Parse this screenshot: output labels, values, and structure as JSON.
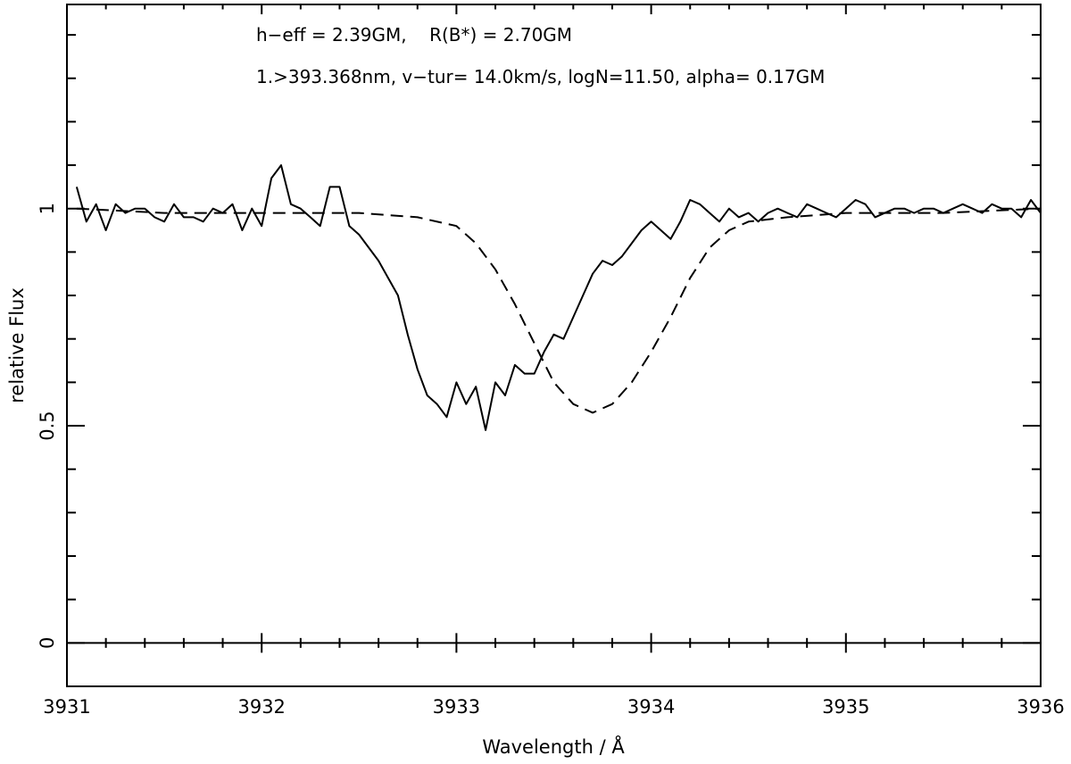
{
  "chart_data": {
    "type": "line",
    "title": "",
    "xlabel": "Wavelength / Å",
    "ylabel": "relative Flux",
    "xlim": [
      3931,
      3936
    ],
    "ylim": [
      -0.1,
      1.47
    ],
    "x_ticks": [
      3931,
      3932,
      3933,
      3934,
      3935,
      3936
    ],
    "x_tick_labels": [
      "3931",
      "3932",
      "3933",
      "3934",
      "3935",
      "3936"
    ],
    "y_ticks": [
      0,
      0.5,
      1
    ],
    "y_tick_labels": [
      "0",
      "0.5",
      "1"
    ],
    "zero_line": 0,
    "grid": false,
    "annotations": [
      "h−eff = 2.39GM,    R(B*) = 2.70GM",
      "1.>393.368nm, v−tur= 14.0km/s, logN=11.50, alpha= 0.17GM"
    ],
    "series": [
      {
        "style": "solid",
        "x": [
          3931.05,
          3931.1,
          3931.15,
          3931.2,
          3931.25,
          3931.3,
          3931.35,
          3931.4,
          3931.45,
          3931.5,
          3931.55,
          3931.6,
          3931.65,
          3931.7,
          3931.75,
          3931.8,
          3931.85,
          3931.9,
          3931.95,
          3932.0,
          3932.05,
          3932.1,
          3932.15,
          3932.2,
          3932.25,
          3932.3,
          3932.35,
          3932.4,
          3932.45,
          3932.5,
          3932.55,
          3932.6,
          3932.65,
          3932.7,
          3932.75,
          3932.8,
          3932.85,
          3932.9,
          3932.95,
          3933.0,
          3933.05,
          3933.1,
          3933.15,
          3933.2,
          3933.25,
          3933.3,
          3933.35,
          3933.4,
          3933.45,
          3933.5,
          3933.55,
          3933.6,
          3933.65,
          3933.7,
          3933.75,
          3933.8,
          3933.85,
          3933.9,
          3933.95,
          3934.0,
          3934.05,
          3934.1,
          3934.15,
          3934.2,
          3934.25,
          3934.3,
          3934.35,
          3934.4,
          3934.45,
          3934.5,
          3934.55,
          3934.6,
          3934.65,
          3934.7,
          3934.75,
          3934.8,
          3934.85,
          3934.9,
          3934.95,
          3935.0,
          3935.05,
          3935.1,
          3935.15,
          3935.2,
          3935.25,
          3935.3,
          3935.35,
          3935.4,
          3935.45,
          3935.5,
          3935.55,
          3935.6,
          3935.65,
          3935.7,
          3935.75,
          3935.8,
          3935.85,
          3935.9,
          3935.95,
          3936.0
        ],
        "values": [
          1.05,
          0.97,
          1.01,
          0.95,
          1.01,
          0.99,
          1.0,
          1.0,
          0.98,
          0.97,
          1.01,
          0.98,
          0.98,
          0.97,
          1.0,
          0.99,
          1.01,
          0.95,
          1.0,
          0.96,
          1.07,
          1.1,
          1.01,
          1.0,
          0.98,
          0.96,
          1.05,
          1.05,
          0.96,
          0.94,
          0.91,
          0.88,
          0.84,
          0.8,
          0.71,
          0.63,
          0.57,
          0.55,
          0.52,
          0.6,
          0.55,
          0.59,
          0.49,
          0.6,
          0.57,
          0.64,
          0.62,
          0.62,
          0.67,
          0.71,
          0.7,
          0.75,
          0.8,
          0.85,
          0.88,
          0.87,
          0.89,
          0.92,
          0.95,
          0.97,
          0.95,
          0.93,
          0.97,
          1.02,
          1.01,
          0.99,
          0.97,
          1.0,
          0.98,
          0.99,
          0.97,
          0.99,
          1.0,
          0.99,
          0.98,
          1.01,
          1.0,
          0.99,
          0.98,
          1.0,
          1.02,
          1.01,
          0.98,
          0.99,
          1.0,
          1.0,
          0.99,
          1.0,
          1.0,
          0.99,
          1.0,
          1.01,
          1.0,
          0.99,
          1.01,
          1.0,
          1.0,
          0.98,
          1.02,
          0.99
        ]
      },
      {
        "style": "dashed",
        "x": [
          3931.05,
          3931.5,
          3932.0,
          3932.5,
          3932.8,
          3933.0,
          3933.1,
          3933.2,
          3933.3,
          3933.4,
          3933.5,
          3933.6,
          3933.7,
          3933.8,
          3933.9,
          3934.0,
          3934.1,
          3934.2,
          3934.3,
          3934.4,
          3934.5,
          3934.7,
          3935.0,
          3935.5,
          3936.0
        ],
        "values": [
          1.0,
          0.99,
          0.99,
          0.99,
          0.98,
          0.96,
          0.92,
          0.86,
          0.78,
          0.69,
          0.6,
          0.55,
          0.53,
          0.55,
          0.6,
          0.67,
          0.75,
          0.84,
          0.91,
          0.95,
          0.97,
          0.98,
          0.99,
          0.99,
          1.0
        ]
      }
    ]
  }
}
